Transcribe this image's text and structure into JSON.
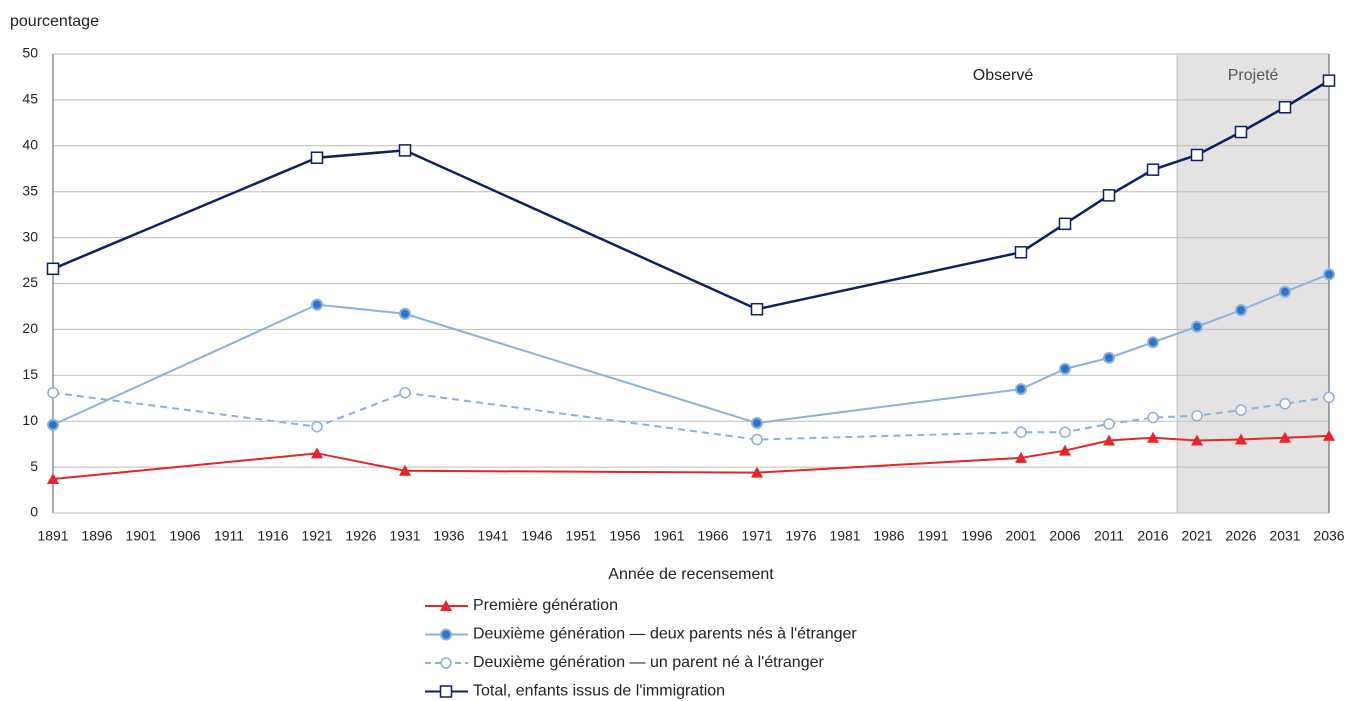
{
  "chart_data": {
    "type": "line",
    "y_label": "pourcentage",
    "x_label": "Année de recensement",
    "annotations": [
      "Observé"
    ],
    "shaded_region": {
      "xlim": [
        2018.75,
        2036
      ],
      "label": "Projeté",
      "color": "#e4e2e3"
    },
    "x": [
      1891,
      1921,
      1931,
      1971,
      2001,
      2006,
      2011,
      2016,
      2021,
      2026,
      2031,
      2036
    ],
    "series": [
      {
        "name": "Première génération",
        "color": "#e3262b",
        "marker": "triangle",
        "dashed": false,
        "values": [
          3.7,
          6.5,
          4.6,
          4.4,
          6.0,
          6.8,
          7.9,
          8.2,
          7.9,
          8.0,
          8.2,
          8.4
        ]
      },
      {
        "name": "Deuxième génération — deux parents nés à l'étranger",
        "color": "#8cb0dc",
        "marker": "dot",
        "dashed": false,
        "values": [
          9.6,
          22.7,
          21.7,
          9.8,
          13.5,
          15.7,
          16.9,
          18.6,
          20.3,
          22.1,
          24.1,
          26.0
        ]
      },
      {
        "name": "Deuxième génération — un parent né à l'étranger",
        "color": "#8cb0dc",
        "marker": "circle",
        "dashed": true,
        "values": [
          13.1,
          9.4,
          13.1,
          8.0,
          8.8,
          8.8,
          9.7,
          10.4,
          10.6,
          11.2,
          11.9,
          12.6
        ]
      },
      {
        "name": "Total, enfants issus de l'immigration",
        "color": "#0d2160",
        "marker": "square",
        "dashed": false,
        "values": [
          26.6,
          38.7,
          39.5,
          22.2,
          28.4,
          31.5,
          34.6,
          37.4,
          39.0,
          41.5,
          44.2,
          47.1
        ]
      }
    ],
    "xlim": [
      1891,
      2036
    ],
    "xticks": [
      1891,
      1896,
      1901,
      1906,
      1911,
      1916,
      1921,
      1926,
      1931,
      1936,
      1941,
      1946,
      1951,
      1956,
      1961,
      1966,
      1971,
      1976,
      1981,
      1986,
      1991,
      1996,
      2001,
      2006,
      2011,
      2016,
      2021,
      2026,
      2031,
      2036
    ],
    "ylim": [
      0,
      50
    ],
    "yticks": [
      0,
      5,
      10,
      15,
      20,
      25,
      30,
      35,
      40,
      45,
      50
    ],
    "grid": true
  }
}
